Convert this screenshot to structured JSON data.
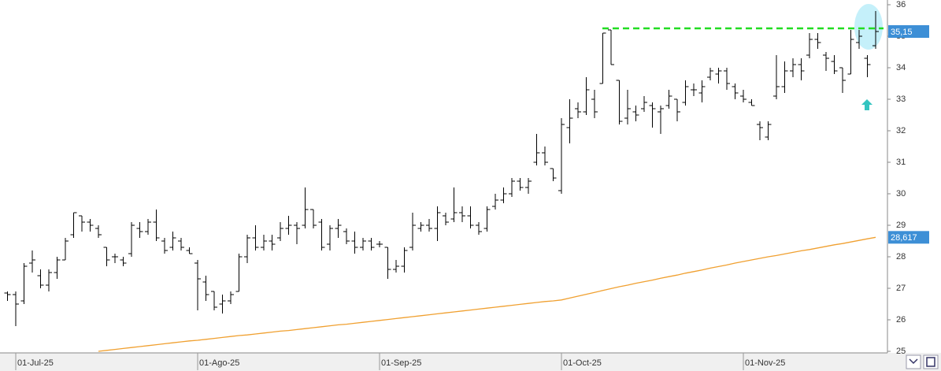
{
  "chart_data": {
    "type": "ohlc",
    "categories": [
      null,
      "01-Jul-25",
      null,
      null,
      null,
      null,
      null,
      null,
      null,
      null,
      null,
      null,
      null,
      null,
      null,
      null,
      null,
      null,
      null,
      null,
      null,
      null,
      null,
      "01-Ago-25",
      null,
      null,
      null,
      null,
      null,
      null,
      null,
      null,
      null,
      null,
      null,
      null,
      null,
      null,
      null,
      null,
      null,
      null,
      null,
      null,
      null,
      "01-Sep-25",
      null,
      null,
      null,
      null,
      null,
      null,
      null,
      null,
      null,
      null,
      null,
      null,
      null,
      null,
      null,
      null,
      null,
      null,
      null,
      null,
      null,
      "01-Oct-25",
      null,
      null,
      null,
      null,
      null,
      null,
      null,
      null,
      null,
      null,
      null,
      null,
      null,
      null,
      null,
      null,
      null,
      null,
      null,
      null,
      null,
      "01-Nov-25",
      null,
      null,
      null,
      null,
      null,
      null,
      null,
      null,
      null,
      null,
      null,
      null,
      null,
      null,
      null,
      null
    ],
    "open": [
      26.85,
      26.8,
      26.6,
      27.8,
      27.4,
      27.1,
      27.5,
      27.9,
      28.7,
      29.3,
      29.1,
      28.9,
      28.3,
      28.0,
      27.9,
      28.1,
      28.9,
      28.8,
      29.1,
      28.5,
      28.3,
      28.5,
      28.2,
      27.8,
      27.2,
      26.9,
      26.5,
      26.6,
      26.9,
      28.0,
      28.6,
      28.3,
      28.5,
      28.6,
      28.9,
      29.0,
      29.0,
      29.5,
      29.1,
      28.4,
      28.9,
      28.8,
      28.5,
      28.3,
      28.5,
      28.4,
      28.3,
      27.6,
      27.7,
      28.3,
      28.9,
      29.0,
      28.9,
      29.3,
      29.2,
      29.4,
      29.3,
      29.0,
      28.9,
      29.6,
      29.8,
      30.0,
      30.4,
      30.2,
      31.0,
      31.3,
      30.8,
      30.1,
      32.1,
      32.7,
      32.6,
      33.0,
      33.5,
      35.2,
      33.6,
      32.4,
      32.6,
      32.7,
      32.8,
      32.6,
      32.8,
      33.0,
      32.9,
      33.3,
      33.2,
      33.7,
      33.8,
      33.9,
      33.4,
      33.1,
      32.9,
      32.2,
      31.8,
      33.1,
      33.4,
      33.9,
      34.1,
      34.4,
      34.9,
      34.4,
      34.2,
      34.0,
      33.8,
      34.8,
      34.3,
      34.7
    ],
    "high": [
      26.9,
      26.9,
      27.8,
      28.2,
      27.6,
      27.6,
      28.0,
      28.6,
      29.4,
      29.3,
      29.2,
      29.0,
      28.3,
      28.1,
      28.0,
      29.1,
      29.1,
      29.2,
      29.5,
      28.6,
      28.8,
      28.6,
      28.3,
      27.9,
      27.4,
      26.9,
      26.8,
      26.9,
      28.1,
      28.7,
      29.0,
      28.7,
      28.7,
      29.1,
      29.3,
      29.1,
      30.2,
      29.5,
      29.2,
      29.0,
      29.2,
      28.9,
      28.8,
      28.6,
      28.6,
      28.5,
      28.3,
      27.9,
      28.3,
      29.4,
      29.1,
      29.2,
      29.6,
      29.4,
      30.2,
      29.6,
      29.6,
      29.1,
      29.6,
      30.0,
      30.2,
      30.5,
      30.5,
      30.5,
      31.9,
      31.5,
      30.8,
      32.4,
      33.0,
      32.9,
      33.7,
      33.3,
      35.1,
      35.2,
      33.6,
      33.3,
      32.8,
      33.1,
      32.9,
      32.8,
      33.3,
      33.0,
      33.6,
      33.5,
      33.6,
      34.0,
      34.0,
      34.0,
      33.5,
      33.3,
      33.0,
      32.3,
      32.3,
      34.4,
      34.2,
      34.3,
      34.3,
      35.1,
      35.1,
      34.5,
      34.4,
      34.0,
      35.2,
      35.2,
      34.4,
      35.8
    ],
    "low": [
      26.6,
      25.8,
      26.5,
      27.5,
      27.0,
      26.9,
      27.3,
      27.9,
      28.6,
      28.8,
      28.8,
      28.6,
      27.7,
      27.8,
      27.7,
      28.0,
      28.6,
      28.7,
      28.5,
      28.1,
      28.2,
      28.2,
      28.1,
      26.3,
      26.6,
      26.3,
      26.2,
      26.5,
      26.9,
      27.8,
      28.2,
      28.2,
      28.2,
      28.5,
      28.7,
      28.4,
      28.9,
      28.9,
      28.2,
      28.2,
      28.6,
      28.4,
      28.1,
      28.2,
      28.2,
      28.3,
      27.3,
      27.5,
      27.5,
      28.2,
      28.8,
      28.8,
      28.5,
      29.0,
      29.1,
      29.1,
      28.9,
      28.7,
      28.8,
      29.5,
      29.7,
      29.9,
      30.1,
      30.0,
      30.9,
      30.9,
      30.4,
      30.0,
      31.6,
      32.4,
      32.5,
      32.4,
      33.5,
      34.1,
      32.2,
      32.2,
      32.3,
      32.6,
      32.1,
      31.9,
      32.7,
      32.3,
      32.8,
      33.1,
      32.9,
      33.6,
      33.5,
      33.3,
      33.0,
      32.9,
      32.8,
      31.7,
      31.7,
      33.0,
      33.2,
      33.7,
      33.6,
      34.3,
      34.6,
      33.9,
      33.8,
      33.2,
      33.8,
      34.6,
      33.7,
      34.6
    ],
    "close": [
      26.8,
      26.5,
      27.7,
      27.9,
      27.1,
      27.5,
      27.9,
      28.5,
      29.4,
      29.1,
      29.0,
      28.7,
      27.9,
      28.0,
      27.8,
      29.0,
      28.8,
      29.1,
      28.6,
      28.2,
      28.6,
      28.3,
      28.1,
      27.3,
      26.8,
      26.4,
      26.6,
      26.8,
      28.0,
      28.6,
      28.3,
      28.5,
      28.4,
      28.9,
      29.0,
      28.9,
      29.5,
      29.0,
      28.3,
      28.9,
      29.0,
      28.5,
      28.3,
      28.5,
      28.3,
      28.4,
      27.6,
      27.7,
      28.2,
      29.0,
      29.0,
      28.9,
      29.4,
      29.1,
      29.4,
      29.3,
      29.0,
      28.8,
      29.5,
      29.8,
      30.0,
      30.4,
      30.2,
      30.4,
      31.3,
      31.0,
      30.5,
      32.2,
      32.4,
      32.6,
      33.3,
      32.6,
      35.1,
      34.1,
      32.3,
      32.7,
      32.5,
      32.9,
      32.7,
      32.7,
      33.1,
      32.6,
      33.4,
      33.3,
      33.4,
      33.9,
      33.9,
      33.5,
      33.2,
      33.0,
      32.8,
      32.1,
      32.2,
      33.4,
      33.9,
      34.1,
      33.9,
      34.9,
      34.8,
      34.3,
      33.9,
      33.6,
      34.9,
      35.0,
      34.1,
      35.15
    ],
    "color": "#000000",
    "last_label": "35,15",
    "ma": {
      "color": "#f0a030",
      "last_label": "28,617",
      "values": [
        null,
        null,
        null,
        null,
        null,
        null,
        null,
        null,
        null,
        null,
        null,
        25.0,
        25.03,
        25.06,
        25.09,
        25.12,
        25.15,
        25.18,
        25.21,
        25.24,
        25.27,
        25.3,
        25.33,
        25.35,
        25.38,
        25.41,
        25.44,
        25.47,
        25.5,
        25.52,
        25.55,
        25.58,
        25.61,
        25.64,
        25.66,
        25.69,
        25.72,
        25.75,
        25.78,
        25.81,
        25.84,
        25.86,
        25.89,
        25.92,
        25.95,
        25.98,
        26.01,
        26.04,
        26.07,
        26.1,
        26.13,
        26.16,
        26.19,
        26.22,
        26.25,
        26.28,
        26.31,
        26.34,
        26.37,
        26.4,
        26.43,
        26.46,
        26.49,
        26.52,
        26.55,
        26.58,
        26.6,
        26.63,
        26.69,
        26.75,
        26.81,
        26.87,
        26.93,
        26.99,
        27.05,
        27.1,
        27.16,
        27.21,
        27.26,
        27.32,
        27.37,
        27.42,
        27.48,
        27.53,
        27.58,
        27.64,
        27.69,
        27.74,
        27.8,
        27.85,
        27.9,
        27.95,
        28.0,
        28.04,
        28.09,
        28.14,
        28.19,
        28.23,
        28.28,
        28.33,
        28.38,
        28.42,
        28.47,
        28.52,
        28.57,
        28.617
      ]
    },
    "hline": {
      "value": 35.25,
      "color": "#22dd22"
    },
    "ylim": [
      25,
      36
    ],
    "yticks": [
      25,
      26,
      27,
      28,
      29,
      30,
      31,
      32,
      33,
      34,
      35,
      36
    ]
  }
}
